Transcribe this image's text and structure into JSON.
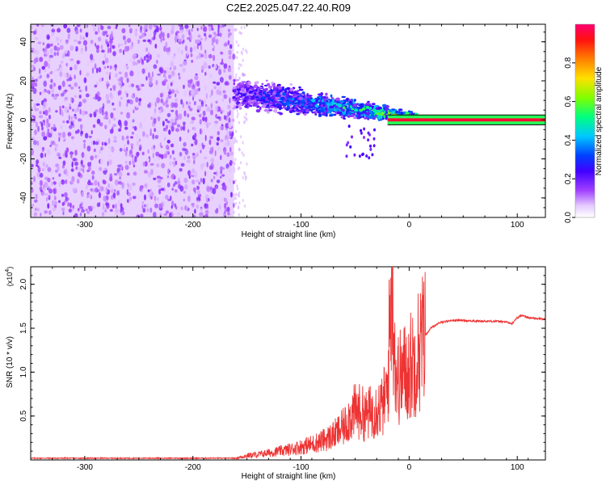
{
  "title": "C2E2.2025.047.22.40.R09",
  "chart_data": [
    {
      "type": "heatmap",
      "xlabel": "Height of straight line (km)",
      "ylabel": "Frequency (Hz)",
      "xlim": [
        -350,
        126
      ],
      "ylim": [
        -50,
        49
      ],
      "x_ticks": [
        -300,
        -200,
        -100,
        0,
        100
      ],
      "x_tick_labels": [
        "-300",
        "-200",
        "-100",
        "0",
        "100"
      ],
      "y_ticks": [
        -40,
        -20,
        0,
        20,
        40
      ],
      "y_tick_labels": [
        "-40",
        "-20",
        "0",
        "20",
        "40"
      ],
      "colorbar": {
        "label": "Normalized spectral amplitude",
        "range": [
          0,
          1
        ],
        "ticks": [
          0.0,
          0.2,
          0.4,
          0.6,
          0.8
        ],
        "tick_labels": [
          "0.0",
          "0.2",
          "0.4",
          "0.6",
          "0.8"
        ],
        "colormap": [
          "#ffffff",
          "#d9b8ff",
          "#8a2be2",
          "#3f00ff",
          "#0000ff",
          "#00c8ff",
          "#00ff66",
          "#b0ff00",
          "#ffd000",
          "#ff3000",
          "#ff0060"
        ]
      },
      "regions": [
        {
          "x_range": [
            -350,
            -162
          ],
          "freq_range": [
            -50,
            49
          ],
          "amplitude": 0.1
        },
        {
          "x_range": [
            -162,
            -150
          ],
          "freq_range": [
            -50,
            49
          ],
          "amplitude": 0.03
        },
        {
          "x_range": [
            -162,
            8
          ],
          "freq_center_start": 14,
          "freq_center_end": 1,
          "half_width_start": 12,
          "half_width_end": 3,
          "amplitude_start": 0.2,
          "amplitude_end": 0.6
        },
        {
          "x_range": [
            -20,
            126
          ],
          "freq_range": [
            -2.5,
            2.5
          ],
          "amplitude": 0.95
        }
      ]
    },
    {
      "type": "line",
      "xlabel": "Height of straight line (km)",
      "ylabel": "SNR (10 * v/v)",
      "y_multiplier": "(x10",
      "y_multiplier_exp": "4",
      "xlim": [
        -350,
        126
      ],
      "ylim": [
        0,
        2.2
      ],
      "x_ticks": [
        -300,
        -200,
        -100,
        0,
        100
      ],
      "x_tick_labels": [
        "-300",
        "-200",
        "-100",
        "0",
        "100"
      ],
      "y_ticks": [
        0.5,
        1.0,
        1.5,
        2.0
      ],
      "y_tick_labels": [
        "0.5",
        "1.0",
        "1.5",
        "2.0"
      ],
      "color": "#ee3333",
      "series": [
        {
          "x": [
            -350,
            -250,
            -180,
            -160,
            -150,
            -140,
            -130,
            -120,
            -110,
            -100,
            -90,
            -80,
            -70,
            -60,
            -55,
            -50,
            -45,
            -40,
            -35,
            -30,
            -25,
            -20,
            -16,
            -12,
            -8,
            -5,
            -2,
            0,
            5,
            10,
            15,
            20,
            25,
            30,
            40,
            50,
            60,
            70,
            80,
            90,
            95,
            100,
            105,
            110,
            120,
            126
          ],
          "y": [
            0.02,
            0.02,
            0.02,
            0.02,
            0.05,
            0.06,
            0.08,
            0.1,
            0.12,
            0.15,
            0.18,
            0.22,
            0.28,
            0.38,
            0.5,
            0.55,
            0.55,
            0.5,
            0.55,
            0.6,
            0.6,
            0.8,
            2.2,
            0.9,
            0.95,
            1.0,
            1.0,
            1.05,
            1.15,
            1.3,
            1.42,
            1.5,
            1.54,
            1.57,
            1.59,
            1.59,
            1.58,
            1.58,
            1.58,
            1.57,
            1.55,
            1.62,
            1.65,
            1.62,
            1.61,
            1.6
          ]
        }
      ]
    }
  ]
}
